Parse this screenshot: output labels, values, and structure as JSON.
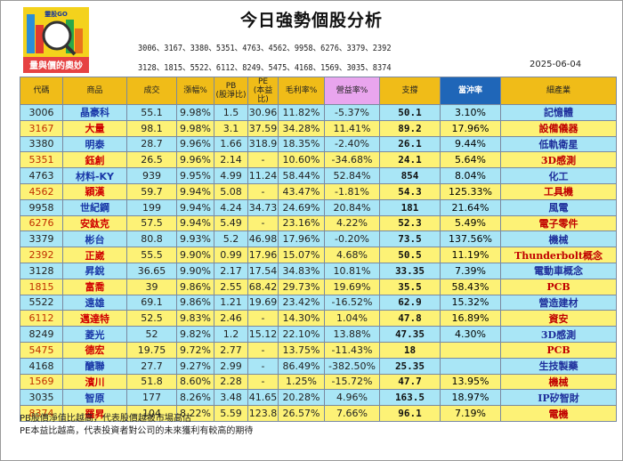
{
  "logo": {
    "top_text": "靈股GO",
    "bottom_text": "量與價的奧妙"
  },
  "title": "今日強勢個股分析",
  "codes_line1": "3006、3167、3380、5351、4763、4562、9958、6276、3379、2392",
  "codes_line2": "3128、1815、5522、6112、8249、5475、4168、1569、3035、8374",
  "date": "2025-06-04",
  "headers": {
    "code": "代碼",
    "name": "商品",
    "volume": "成交",
    "change": "漲幅%",
    "pb": "PB\n(股淨比)",
    "pe": "PE\n(本益比)",
    "gross": "毛利率%",
    "profit": "營益率%",
    "support": "支撐",
    "impact": "當沖率",
    "industry": "細產業"
  },
  "colors": {
    "row_blue": "#a9e6f6",
    "row_yellow": "#fdf276",
    "header_gold": "#f0bc18",
    "header_pink": "#e9a5ee",
    "header_dark": "#1f66b8"
  },
  "rows": [
    {
      "code": "3006",
      "name": "晶豪科",
      "volume": "55.1",
      "change": "9.98%",
      "pb": "1.5",
      "pe": "30.96",
      "gross": "11.82%",
      "profit": "-5.37%",
      "support": "50.1",
      "impact": "3.10%",
      "industry": "記憶體",
      "style": "b"
    },
    {
      "code": "3167",
      "name": "大量",
      "volume": "98.1",
      "change": "9.98%",
      "pb": "3.1",
      "pe": "37.59",
      "gross": "34.28%",
      "profit": "11.41%",
      "support": "89.2",
      "impact": "17.96%",
      "industry": "設備儀器",
      "style": "y"
    },
    {
      "code": "3380",
      "name": "明泰",
      "volume": "28.7",
      "change": "9.96%",
      "pb": "1.66",
      "pe": "318.9",
      "gross": "18.35%",
      "profit": "-2.40%",
      "support": "26.1",
      "impact": "9.44%",
      "industry": "低軌衛星",
      "style": "b"
    },
    {
      "code": "5351",
      "name": "鈺創",
      "volume": "26.5",
      "change": "9.96%",
      "pb": "2.14",
      "pe": "-",
      "gross": "10.60%",
      "profit": "-34.68%",
      "support": "24.1",
      "impact": "5.64%",
      "industry": "3D感測",
      "style": "y"
    },
    {
      "code": "4763",
      "name": "材料-KY",
      "volume": "939",
      "change": "9.95%",
      "pb": "4.99",
      "pe": "11.24",
      "gross": "58.44%",
      "profit": "52.84%",
      "support": "854",
      "impact": "8.04%",
      "industry": "化工",
      "style": "b"
    },
    {
      "code": "4562",
      "name": "穎漢",
      "volume": "59.7",
      "change": "9.94%",
      "pb": "5.08",
      "pe": "-",
      "gross": "43.47%",
      "profit": "-1.81%",
      "support": "54.3",
      "impact": "125.33%",
      "industry": "工具機",
      "style": "y"
    },
    {
      "code": "9958",
      "name": "世紀鋼",
      "volume": "199",
      "change": "9.94%",
      "pb": "4.24",
      "pe": "34.73",
      "gross": "24.69%",
      "profit": "20.84%",
      "support": "181",
      "impact": "21.64%",
      "industry": "風電",
      "style": "b"
    },
    {
      "code": "6276",
      "name": "安鈦克",
      "volume": "57.5",
      "change": "9.94%",
      "pb": "5.49",
      "pe": "-",
      "gross": "23.16%",
      "profit": "4.22%",
      "support": "52.3",
      "impact": "5.49%",
      "industry": "電子零件",
      "style": "y"
    },
    {
      "code": "3379",
      "name": "彬台",
      "volume": "80.8",
      "change": "9.93%",
      "pb": "5.2",
      "pe": "46.98",
      "gross": "17.96%",
      "profit": "-0.20%",
      "support": "73.5",
      "impact": "137.56%",
      "industry": "機械",
      "style": "b"
    },
    {
      "code": "2392",
      "name": "正崴",
      "volume": "55.5",
      "change": "9.90%",
      "pb": "0.99",
      "pe": "17.96",
      "gross": "15.07%",
      "profit": "4.68%",
      "support": "50.5",
      "impact": "11.19%",
      "industry": "Thunderbolt概念",
      "style": "y"
    },
    {
      "code": "3128",
      "name": "昇銳",
      "volume": "36.65",
      "change": "9.90%",
      "pb": "2.17",
      "pe": "17.54",
      "gross": "34.83%",
      "profit": "10.81%",
      "support": "33.35",
      "impact": "7.39%",
      "industry": "電動車概念",
      "style": "b"
    },
    {
      "code": "1815",
      "name": "富喬",
      "volume": "39",
      "change": "9.86%",
      "pb": "2.55",
      "pe": "68.42",
      "gross": "29.73%",
      "profit": "19.69%",
      "support": "35.5",
      "impact": "58.43%",
      "industry": "PCB",
      "style": "y"
    },
    {
      "code": "5522",
      "name": "遠雄",
      "volume": "69.1",
      "change": "9.86%",
      "pb": "1.21",
      "pe": "19.69",
      "gross": "23.42%",
      "profit": "-16.52%",
      "support": "62.9",
      "impact": "15.32%",
      "industry": "營造建材",
      "style": "b"
    },
    {
      "code": "6112",
      "name": "邁達特",
      "volume": "52.5",
      "change": "9.83%",
      "pb": "2.46",
      "pe": "-",
      "gross": "14.30%",
      "profit": "1.04%",
      "support": "47.8",
      "impact": "16.89%",
      "industry": "資安",
      "style": "y"
    },
    {
      "code": "8249",
      "name": "菱光",
      "volume": "52",
      "change": "9.82%",
      "pb": "1.2",
      "pe": "15.12",
      "gross": "22.10%",
      "profit": "13.88%",
      "support": "47.35",
      "impact": "4.30%",
      "industry": "3D感測",
      "style": "b"
    },
    {
      "code": "5475",
      "name": "德宏",
      "volume": "19.75",
      "change": "9.72%",
      "pb": "2.77",
      "pe": "-",
      "gross": "13.75%",
      "profit": "-11.43%",
      "support": "18",
      "impact": "",
      "industry": "PCB",
      "style": "y"
    },
    {
      "code": "4168",
      "name": "醣聯",
      "volume": "27.7",
      "change": "9.27%",
      "pb": "2.99",
      "pe": "-",
      "gross": "86.49%",
      "profit": "-382.50%",
      "support": "25.35",
      "impact": "",
      "industry": "生技製藥",
      "style": "b"
    },
    {
      "code": "1569",
      "name": "濱川",
      "volume": "51.8",
      "change": "8.60%",
      "pb": "2.28",
      "pe": "-",
      "gross": "1.25%",
      "profit": "-15.72%",
      "support": "47.7",
      "impact": "13.95%",
      "industry": "機械",
      "style": "y"
    },
    {
      "code": "3035",
      "name": "智原",
      "volume": "177",
      "change": "8.26%",
      "pb": "3.48",
      "pe": "41.65",
      "gross": "20.28%",
      "profit": "4.96%",
      "support": "163.5",
      "impact": "18.97%",
      "industry": "IP矽智財",
      "style": "b"
    },
    {
      "code": "8374",
      "name": "羅昇",
      "volume": "104",
      "change": "8.22%",
      "pb": "5.59",
      "pe": "123.8",
      "gross": "26.57%",
      "profit": "7.66%",
      "support": "96.1",
      "impact": "7.19%",
      "industry": "電機",
      "style": "y"
    }
  ],
  "notes": [
    "PB股價淨值比越高，代表股價越被市場高估",
    "PE本益比越高，代表投資者對公司的未來獲利有較高的期待"
  ]
}
